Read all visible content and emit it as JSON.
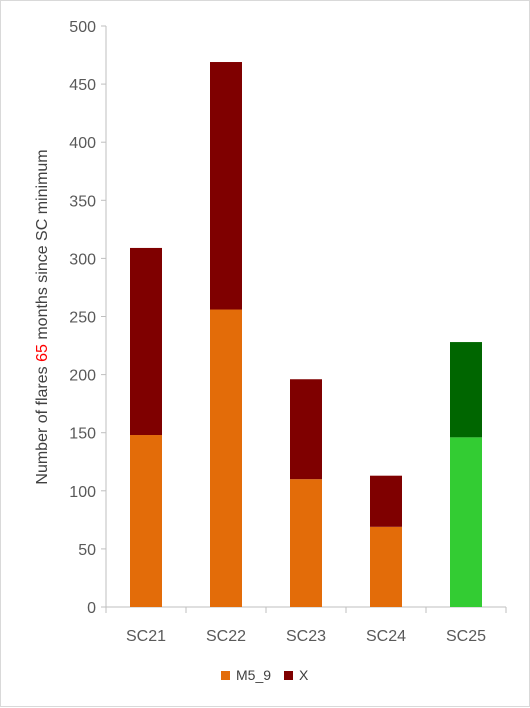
{
  "chart_data": {
    "type": "bar",
    "stacked": true,
    "categories": [
      "SC21",
      "SC22",
      "SC23",
      "SC24",
      "SC25"
    ],
    "series": [
      {
        "name": "M5_9",
        "values": [
          148,
          256,
          110,
          69,
          146
        ],
        "color": "#e36c09",
        "highlight_color": "#33cc33"
      },
      {
        "name": "X",
        "values": [
          161,
          213,
          86,
          44,
          82
        ],
        "color": "#7f0000",
        "highlight_color": "#006600"
      }
    ],
    "highlight_category": "SC25",
    "ylabel": {
      "prefix": "Number of flares ",
      "highlight": "65",
      "suffix": " months since SC minimum",
      "highlight_color": "#ff0000"
    },
    "ylim": [
      0,
      500
    ],
    "yticks": [
      0,
      50,
      100,
      150,
      200,
      250,
      300,
      350,
      400,
      450,
      500
    ],
    "grid": false,
    "legend_position": "bottom"
  }
}
